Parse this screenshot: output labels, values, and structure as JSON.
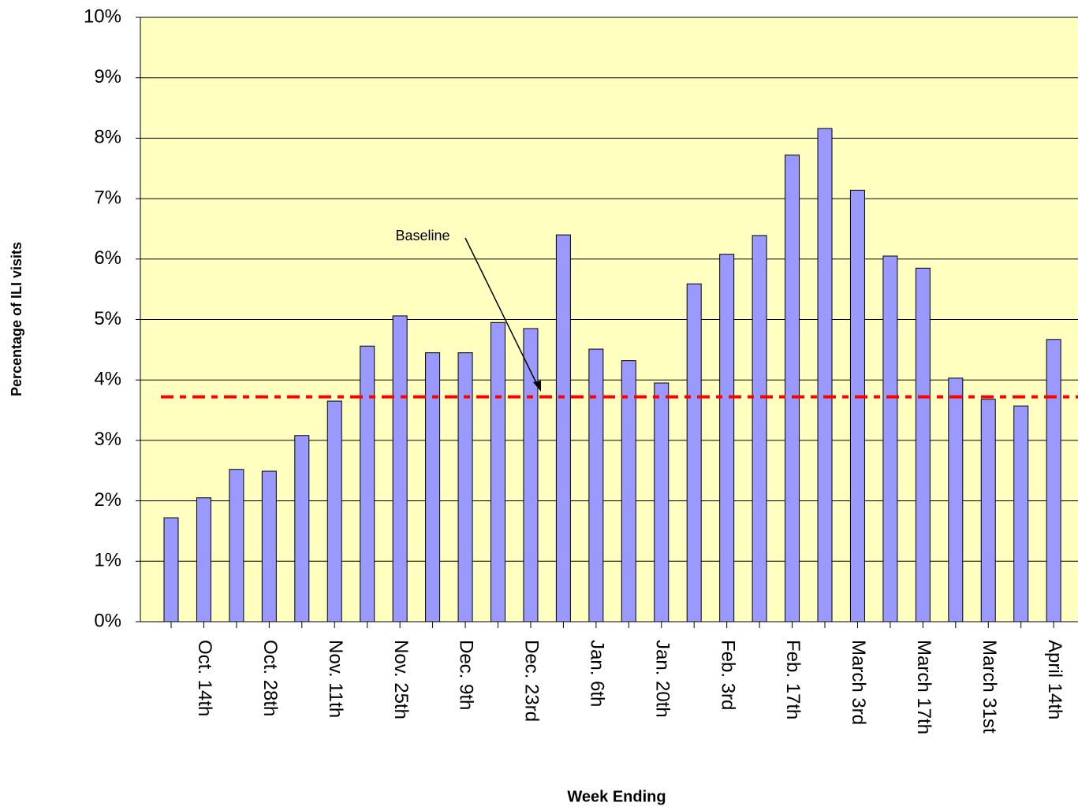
{
  "chart_data": {
    "type": "bar",
    "x_label": "Week Ending",
    "y_label": "Percentage of ILI visits",
    "categories": [
      null,
      "Oct. 14th",
      null,
      "Oct. 28th",
      null,
      "Nov. 11th",
      null,
      "Nov. 25th",
      null,
      "Dec. 9th",
      null,
      "Dec. 23rd",
      null,
      "Jan. 6th",
      null,
      "Jan. 20th",
      null,
      "Feb. 3rd",
      null,
      "Feb. 17th",
      null,
      "March 3rd",
      null,
      "March 17th",
      null,
      "March 31st",
      null,
      "April 14th"
    ],
    "values": [
      1.72,
      2.05,
      2.52,
      2.49,
      3.08,
      3.65,
      4.56,
      5.06,
      4.45,
      4.45,
      4.95,
      4.85,
      6.4,
      4.51,
      4.32,
      3.95,
      5.59,
      6.08,
      6.39,
      7.72,
      8.16,
      7.14,
      6.05,
      5.85,
      4.03,
      3.68,
      3.57,
      4.67
    ],
    "color": "#9999ff",
    "ylim": [
      0,
      10
    ],
    "yticks": [
      {
        "value": 0,
        "label": "0%"
      },
      {
        "value": 1,
        "label": "1%"
      },
      {
        "value": 2,
        "label": "2%"
      },
      {
        "value": 3,
        "label": "3%"
      },
      {
        "value": 4,
        "label": "4%"
      },
      {
        "value": 5,
        "label": "5%"
      },
      {
        "value": 6,
        "label": "6%"
      },
      {
        "value": 7,
        "label": "7%"
      },
      {
        "value": 8,
        "label": "8%"
      },
      {
        "value": 9,
        "label": "9%"
      },
      {
        "value": 10,
        "label": "10%"
      }
    ],
    "grid": true,
    "background": "#ffffc0",
    "baseline": {
      "value": 3.72,
      "label": "Baseline",
      "color": "#ff0000"
    }
  }
}
